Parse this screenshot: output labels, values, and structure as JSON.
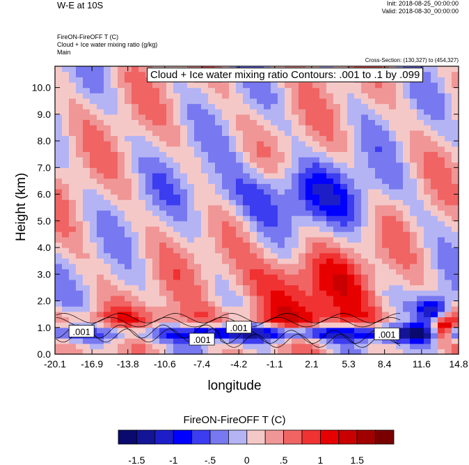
{
  "header": {
    "title": "W-E at 10S",
    "init": "Init: 2018-08-25_00:00:00",
    "valid": "Valid: 2018-08-30_00:00:00",
    "field_line1": "FireON-FireOFF T   (C)",
    "field_line2": "Cloud + Ice water mixing ratio   (g/kg)",
    "field_line3": "Main",
    "cross_section": "Cross-Section: (130,327) to (454,327)"
  },
  "contour_info": "Cloud + Ice water mixing ratio Contours: .001 to .1 by .099",
  "chart_data": {
    "type": "heatmap",
    "xlabel": "longitude",
    "ylabel": "Height (km)",
    "x_ticks": [
      "-20.1",
      "-16.9",
      "-13.8",
      "-10.6",
      "-7.4",
      "-4.2",
      "-1.1",
      "2.1",
      "5.3",
      "8.4",
      "11.6",
      "14.8"
    ],
    "y_ticks": [
      "0.0",
      "1.0",
      "2.0",
      "3.0",
      "4.0",
      "5.0",
      "6.0",
      "7.0",
      "8.0",
      "9.0",
      "10.0"
    ],
    "xlim": [
      -20.1,
      14.8
    ],
    "ylim": [
      0,
      10.8
    ],
    "colorbar": {
      "title": "FireON-FireOFF T  (C)",
      "labels": [
        "-1.5",
        "-1",
        "-.5",
        "0",
        ".5",
        "1",
        "1.5"
      ],
      "colors": [
        "#0a0a6e",
        "#141496",
        "#1e1ec8",
        "#0000ff",
        "#3c3cf0",
        "#7878f0",
        "#b4b4f5",
        "#f5c8c8",
        "#f09696",
        "#f06464",
        "#f03232",
        "#e60000",
        "#c80000",
        "#a00000",
        "#780000"
      ]
    },
    "contour_labels": [
      {
        "text": ".001",
        "lon": -17.8,
        "height": 0.85
      },
      {
        "text": ".001",
        "lon": -7.4,
        "height": 0.55
      },
      {
        "text": ".001",
        "lon": -4.2,
        "height": 1.0
      },
      {
        "text": ".001",
        "lon": 8.6,
        "height": 0.75
      }
    ]
  }
}
